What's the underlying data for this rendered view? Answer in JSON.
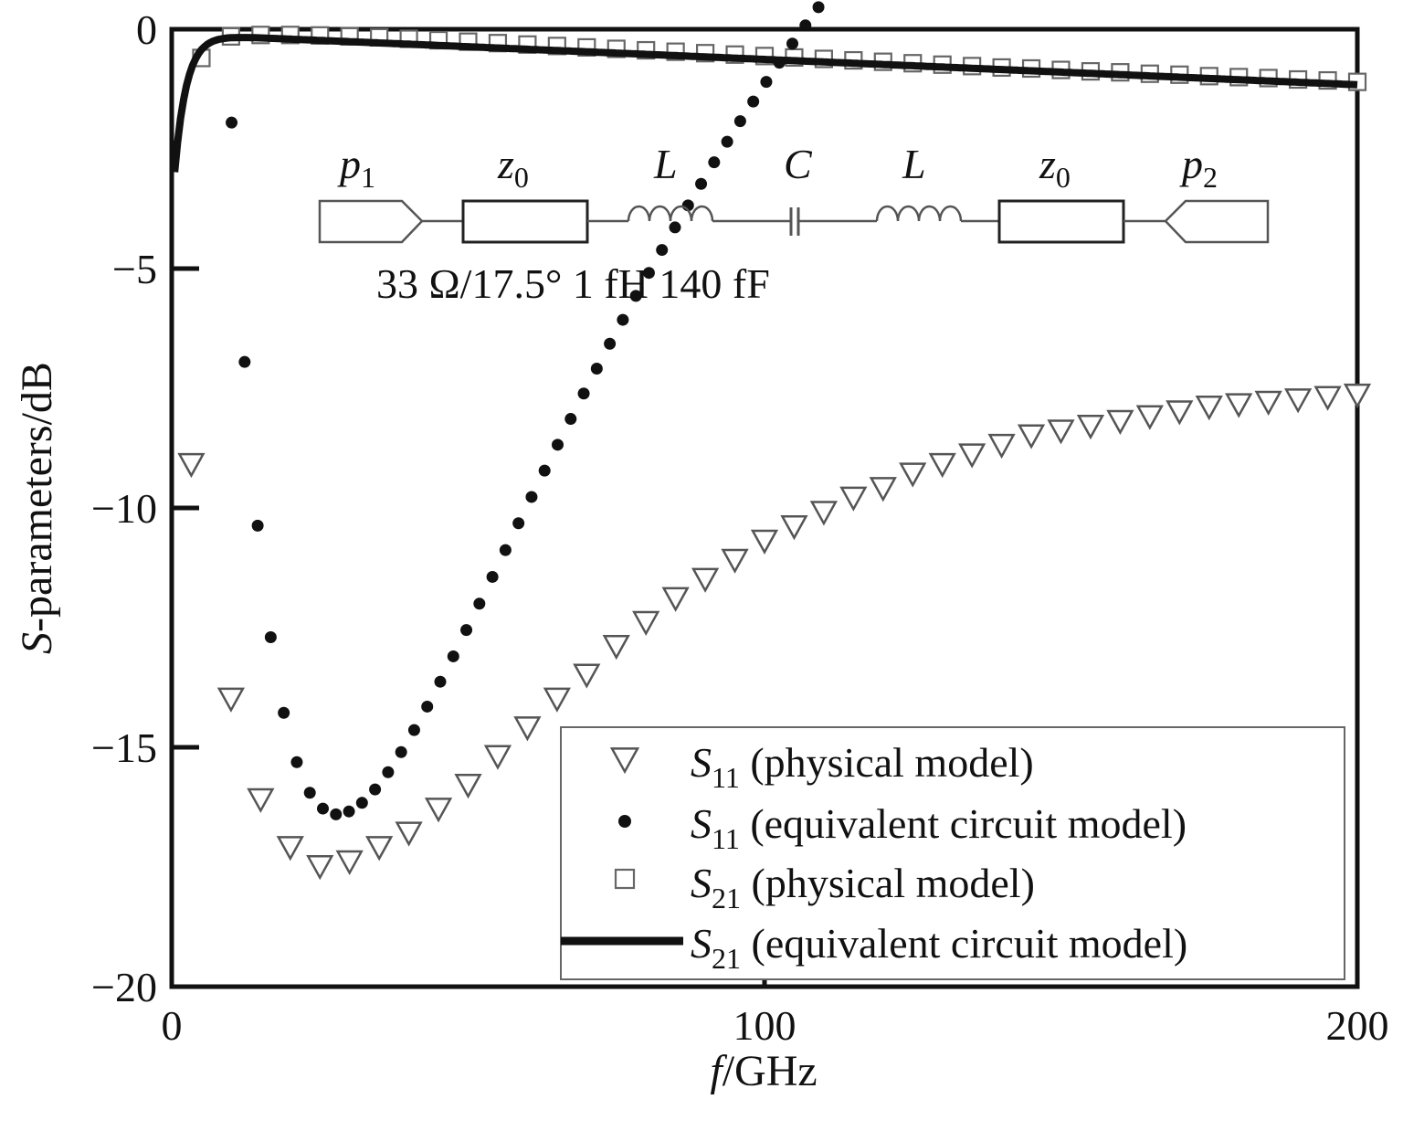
{
  "chart_data": {
    "type": "scatter",
    "xlabel": {
      "italic": "f",
      "rest": "/GHz"
    },
    "ylabel": {
      "italic": "S",
      "rest": "-parameters/dB"
    },
    "xlim": [
      0,
      200
    ],
    "ylim": [
      -20,
      0
    ],
    "x_ticks": [
      0,
      100,
      200
    ],
    "x_tick_labels": [
      "0",
      "100",
      "200"
    ],
    "y_ticks": [
      0,
      -5,
      -10,
      -15,
      -20
    ],
    "y_tick_labels": [
      "0",
      "−5",
      "−10",
      "−15",
      "−20"
    ],
    "legend_position": "bottom-right",
    "series": [
      {
        "label_main": "S",
        "label_sub": "11",
        "label_rest": " (physical model)",
        "marker": "triangle-down",
        "x": [
          3.3,
          10,
          15,
          20,
          25,
          30,
          35,
          40,
          45,
          50,
          55,
          60,
          65,
          70,
          75,
          80,
          85,
          90,
          95,
          100,
          105,
          110,
          115,
          120,
          125,
          130,
          135,
          140,
          145,
          150,
          155,
          160,
          165,
          170,
          175,
          180,
          185,
          190,
          195,
          200
        ],
        "y": [
          -9.1,
          -14.0,
          -16.1,
          -17.1,
          -17.5,
          -17.4,
          -17.1,
          -16.8,
          -16.3,
          -15.8,
          -15.2,
          -14.6,
          -14.0,
          -13.5,
          -12.9,
          -12.4,
          -11.9,
          -11.5,
          -11.1,
          -10.7,
          -10.4,
          -10.1,
          -9.8,
          -9.6,
          -9.3,
          -9.1,
          -8.9,
          -8.7,
          -8.5,
          -8.4,
          -8.3,
          -8.2,
          -8.1,
          -8.0,
          -7.9,
          -7.85,
          -7.8,
          -7.75,
          -7.7,
          -7.65
        ]
      },
      {
        "label_main": "S",
        "label_sub": "11",
        "label_rest": " (equivalent circuit model)",
        "marker": "dot",
        "x": [],
        "y": []
      },
      {
        "label_main": "S",
        "label_sub": "21",
        "label_rest": " (physical model)",
        "marker": "square",
        "x": [
          5,
          10,
          15,
          20,
          25,
          30,
          35,
          40,
          45,
          50,
          55,
          60,
          65,
          70,
          75,
          80,
          85,
          90,
          95,
          100,
          105,
          110,
          115,
          120,
          125,
          130,
          135,
          140,
          145,
          150,
          155,
          160,
          165,
          170,
          175,
          180,
          185,
          190,
          195,
          200
        ],
        "y": [
          -0.6,
          -0.15,
          -0.12,
          -0.12,
          -0.13,
          -0.15,
          -0.17,
          -0.2,
          -0.23,
          -0.26,
          -0.29,
          -0.32,
          -0.35,
          -0.38,
          -0.41,
          -0.44,
          -0.47,
          -0.5,
          -0.53,
          -0.56,
          -0.59,
          -0.62,
          -0.65,
          -0.68,
          -0.71,
          -0.74,
          -0.77,
          -0.8,
          -0.82,
          -0.85,
          -0.88,
          -0.9,
          -0.93,
          -0.95,
          -0.98,
          -1.0,
          -1.02,
          -1.05,
          -1.07,
          -1.1
        ]
      },
      {
        "label_main": "S",
        "label_sub": "21",
        "label_rest": " (equivalent circuit model)",
        "marker": "line",
        "x": [],
        "y": []
      }
    ],
    "curve_models": {
      "s11_circuit": {
        "x_min": 3.5,
        "x_max": 200,
        "step": 2.2
      },
      "s21_circuit": {
        "x_min": 0.5,
        "x_max": 200,
        "step": 0.5
      }
    }
  },
  "circuit": {
    "p1": {
      "main": "p",
      "sub": "1"
    },
    "z0_left": {
      "main": "z",
      "sub": "0"
    },
    "L_left": "L",
    "C": "C",
    "L_right": "L",
    "z0_right": {
      "main": "z",
      "sub": "0"
    },
    "p2": {
      "main": "p",
      "sub": "2"
    },
    "values": "33 Ω/17.5° 1 fH  140 fF"
  }
}
